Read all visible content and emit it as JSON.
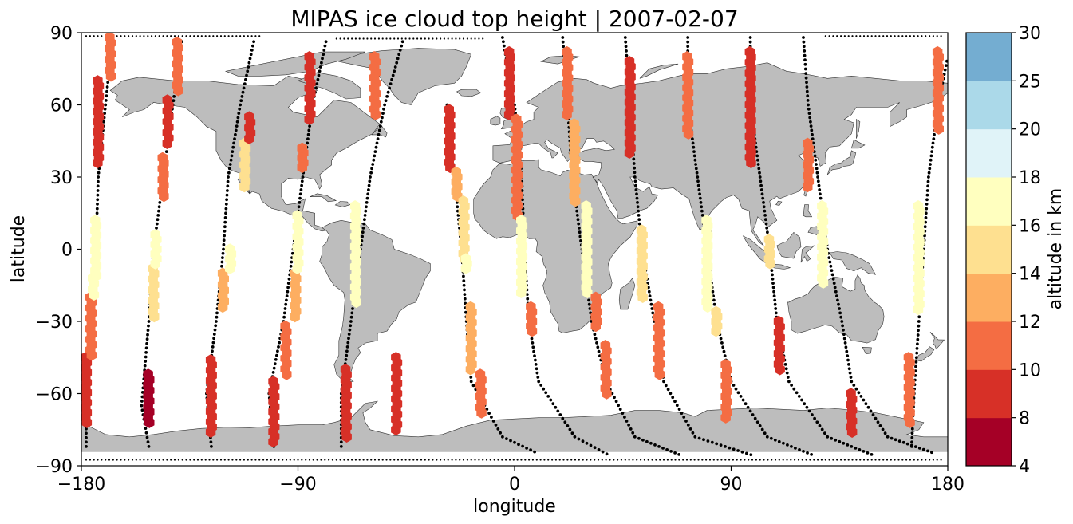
{
  "chart_data": {
    "type": "scatter",
    "title": "MIPAS ice cloud top height | 2007-02-07",
    "xlabel": "longitude",
    "ylabel": "latitude",
    "xlim": [
      -180,
      180
    ],
    "ylim": [
      -90,
      90
    ],
    "xticks": [
      -180,
      -90,
      0,
      90,
      180
    ],
    "yticks": [
      -90,
      -60,
      -30,
      0,
      30,
      60,
      90
    ],
    "xtick_labels": [
      "−180",
      "−90",
      "0",
      "90",
      "180"
    ],
    "ytick_labels": [
      "−90",
      "−60",
      "−30",
      "0",
      "30",
      "60",
      "90"
    ],
    "land_color": "#bdbdbd",
    "track_color": "#000000",
    "colorbar": {
      "label": "altitude in km",
      "bounds": [
        4,
        8,
        10,
        12,
        14,
        16,
        18,
        20,
        25,
        30
      ],
      "tick_labels": [
        "4",
        "8",
        "10",
        "12",
        "14",
        "16",
        "18",
        "20",
        "25",
        "30"
      ],
      "colors": [
        "#a50026",
        "#d73027",
        "#f46d43",
        "#fdae61",
        "#fee090",
        "#ffffbf",
        "#e0f3f8",
        "#abd9e9",
        "#74add1",
        "#313695"
      ]
    },
    "tracks": [
      {
        "direction": "ascending",
        "points": [
          [
            -178,
            -82
          ],
          [
            -178,
            -60
          ],
          [
            -175,
            -30
          ],
          [
            -174,
            0
          ],
          [
            -173,
            30
          ],
          [
            -170,
            60
          ],
          [
            -167,
            88
          ]
        ]
      },
      {
        "direction": "ascending",
        "points": [
          [
            -152,
            -82
          ],
          [
            -155,
            -65
          ],
          [
            -152,
            -30
          ],
          [
            -150,
            0
          ],
          [
            -146,
            30
          ],
          [
            -142,
            60
          ],
          [
            -138,
            88
          ]
        ]
      },
      {
        "direction": "ascending",
        "points": [
          [
            -126,
            -82
          ],
          [
            -128,
            -60
          ],
          [
            -124,
            -30
          ],
          [
            -121,
            0
          ],
          [
            -119,
            30
          ],
          [
            -114,
            60
          ],
          [
            -108,
            88
          ]
        ]
      },
      {
        "direction": "ascending",
        "points": [
          [
            -100,
            -82
          ],
          [
            -102,
            -60
          ],
          [
            -96,
            -30
          ],
          [
            -92,
            0
          ],
          [
            -88,
            30
          ],
          [
            -84,
            60
          ],
          [
            -78,
            88
          ]
        ]
      },
      {
        "direction": "ascending",
        "points": [
          [
            -72,
            -82
          ],
          [
            -72,
            -60
          ],
          [
            -68,
            -30
          ],
          [
            -64,
            0
          ],
          [
            -60,
            30
          ],
          [
            -54,
            60
          ],
          [
            -46,
            88
          ]
        ]
      },
      {
        "direction": "descending",
        "points": [
          [
            -28,
            60
          ],
          [
            -25,
            30
          ],
          [
            -22,
            0
          ],
          [
            -20,
            -30
          ],
          [
            -18,
            -55
          ],
          [
            -5,
            -78
          ],
          [
            10,
            -85
          ]
        ]
      },
      {
        "direction": "descending",
        "points": [
          [
            -5,
            88
          ],
          [
            0,
            60
          ],
          [
            3,
            30
          ],
          [
            4,
            0
          ],
          [
            6,
            -30
          ],
          [
            10,
            -55
          ],
          [
            25,
            -78
          ],
          [
            40,
            -86
          ]
        ]
      },
      {
        "direction": "descending",
        "points": [
          [
            20,
            88
          ],
          [
            22,
            60
          ],
          [
            24,
            30
          ],
          [
            28,
            0
          ],
          [
            32,
            -30
          ],
          [
            38,
            -55
          ],
          [
            50,
            -78
          ],
          [
            70,
            -86
          ]
        ]
      },
      {
        "direction": "descending",
        "points": [
          [
            46,
            88
          ],
          [
            48,
            60
          ],
          [
            50,
            30
          ],
          [
            53,
            0
          ],
          [
            58,
            -30
          ],
          [
            62,
            -55
          ],
          [
            75,
            -78
          ],
          [
            100,
            -86
          ]
        ]
      },
      {
        "direction": "descending",
        "points": [
          [
            72,
            88
          ],
          [
            72,
            60
          ],
          [
            76,
            30
          ],
          [
            80,
            0
          ],
          [
            84,
            -30
          ],
          [
            90,
            -55
          ],
          [
            105,
            -78
          ],
          [
            125,
            -86
          ]
        ]
      },
      {
        "direction": "descending",
        "points": [
          [
            98,
            88
          ],
          [
            98,
            60
          ],
          [
            102,
            30
          ],
          [
            106,
            0
          ],
          [
            109,
            -30
          ],
          [
            114,
            -55
          ],
          [
            130,
            -78
          ],
          [
            150,
            -86
          ]
        ]
      },
      {
        "direction": "descending",
        "points": [
          [
            120,
            88
          ],
          [
            122,
            60
          ],
          [
            126,
            30
          ],
          [
            130,
            0
          ],
          [
            136,
            -30
          ],
          [
            140,
            -55
          ],
          [
            155,
            -78
          ],
          [
            175,
            -85
          ]
        ]
      },
      {
        "direction": "ascending",
        "points": [
          [
            165,
            -82
          ],
          [
            166,
            -60
          ],
          [
            168,
            -30
          ],
          [
            170,
            0
          ],
          [
            172,
            30
          ],
          [
            176,
            60
          ],
          [
            180,
            80
          ]
        ]
      }
    ],
    "cloud_points": [
      {
        "lon": -178,
        "lat_start": -72,
        "lat_end": -45,
        "alt": 9
      },
      {
        "lon": -176,
        "lat_start": -44,
        "lat_end": -20,
        "alt": 11
      },
      {
        "lon": -175,
        "lat_start": -19,
        "lat_end": -12,
        "alt": 17
      },
      {
        "lon": -174,
        "lat_start": -11,
        "lat_end": 12,
        "alt": 16.5
      },
      {
        "lon": -173,
        "lat_start": 36,
        "lat_end": 70,
        "alt": 9
      },
      {
        "lon": -168,
        "lat_start": 72,
        "lat_end": 88,
        "alt": 11
      },
      {
        "lon": -152,
        "lat_start": -72,
        "lat_end": -52,
        "alt": 7
      },
      {
        "lon": -150,
        "lat_start": -28,
        "lat_end": -8,
        "alt": 15
      },
      {
        "lon": -149,
        "lat_start": -6,
        "lat_end": 6,
        "alt": 16.5
      },
      {
        "lon": -146,
        "lat_start": 22,
        "lat_end": 38,
        "alt": 11
      },
      {
        "lon": -144,
        "lat_start": 44,
        "lat_end": 62,
        "alt": 9
      },
      {
        "lon": -140,
        "lat_start": 66,
        "lat_end": 86,
        "alt": 11
      },
      {
        "lon": -126,
        "lat_start": -76,
        "lat_end": -46,
        "alt": 9
      },
      {
        "lon": -121,
        "lat_start": -24,
        "lat_end": -10,
        "alt": 13
      },
      {
        "lon": -118,
        "lat_start": -8,
        "lat_end": 0,
        "alt": 16.5
      },
      {
        "lon": -112,
        "lat_start": 26,
        "lat_end": 44,
        "alt": 14.5
      },
      {
        "lon": -110,
        "lat_start": 46,
        "lat_end": 55,
        "alt": 9
      },
      {
        "lon": -100,
        "lat_start": -80,
        "lat_end": -55,
        "alt": 9
      },
      {
        "lon": -95,
        "lat_start": -52,
        "lat_end": -32,
        "alt": 11
      },
      {
        "lon": -91,
        "lat_start": -28,
        "lat_end": -10,
        "alt": 13
      },
      {
        "lon": -90,
        "lat_start": -8,
        "lat_end": 14,
        "alt": 16.5
      },
      {
        "lon": -88,
        "lat_start": 34,
        "lat_end": 42,
        "alt": 11
      },
      {
        "lon": -85,
        "lat_start": 54,
        "lat_end": 80,
        "alt": 9
      },
      {
        "lon": -70,
        "lat_start": -78,
        "lat_end": -50,
        "alt": 9
      },
      {
        "lon": -66,
        "lat_start": -22,
        "lat_end": 18,
        "alt": 16.5
      },
      {
        "lon": -58,
        "lat_start": 56,
        "lat_end": 80,
        "alt": 11
      },
      {
        "lon": -49,
        "lat_start": -75,
        "lat_end": -45,
        "alt": 9
      },
      {
        "lon": -27,
        "lat_start": 34,
        "lat_end": 58,
        "alt": 9
      },
      {
        "lon": -24,
        "lat_start": 22,
        "lat_end": 32,
        "alt": 13
      },
      {
        "lon": -21,
        "lat_start": -4,
        "lat_end": 20,
        "alt": 14
      },
      {
        "lon": -20,
        "lat_start": -8,
        "lat_end": -4,
        "alt": 17
      },
      {
        "lon": -18,
        "lat_start": -50,
        "lat_end": -24,
        "alt": 13
      },
      {
        "lon": -14,
        "lat_start": -68,
        "lat_end": -52,
        "alt": 10
      },
      {
        "lon": -2,
        "lat_start": 56,
        "lat_end": 82,
        "alt": 9
      },
      {
        "lon": 1,
        "lat_start": 14,
        "lat_end": 54,
        "alt": 11
      },
      {
        "lon": 3,
        "lat_start": -18,
        "lat_end": 12,
        "alt": 16.5
      },
      {
        "lon": 7,
        "lat_start": -34,
        "lat_end": -24,
        "alt": 11
      },
      {
        "lon": 22,
        "lat_start": 56,
        "lat_end": 82,
        "alt": 11
      },
      {
        "lon": 25,
        "lat_start": 20,
        "lat_end": 52,
        "alt": 13
      },
      {
        "lon": 30,
        "lat_start": -18,
        "lat_end": 18,
        "alt": 17.5
      },
      {
        "lon": 34,
        "lat_start": -32,
        "lat_end": -20,
        "alt": 11
      },
      {
        "lon": 38,
        "lat_start": -60,
        "lat_end": -40,
        "alt": 10
      },
      {
        "lon": 48,
        "lat_start": 40,
        "lat_end": 78,
        "alt": 9
      },
      {
        "lon": 53,
        "lat_start": -20,
        "lat_end": 8,
        "alt": 14.5
      },
      {
        "lon": 60,
        "lat_start": -52,
        "lat_end": -24,
        "alt": 11
      },
      {
        "lon": 72,
        "lat_start": 48,
        "lat_end": 80,
        "alt": 11
      },
      {
        "lon": 80,
        "lat_start": -24,
        "lat_end": 12,
        "alt": 16.5
      },
      {
        "lon": 84,
        "lat_start": -34,
        "lat_end": -26,
        "alt": 14
      },
      {
        "lon": 88,
        "lat_start": -70,
        "lat_end": -48,
        "alt": 10
      },
      {
        "lon": 98,
        "lat_start": 36,
        "lat_end": 82,
        "alt": 9
      },
      {
        "lon": 106,
        "lat_start": -6,
        "lat_end": 4,
        "alt": 14
      },
      {
        "lon": 110,
        "lat_start": -50,
        "lat_end": -30,
        "alt": 9
      },
      {
        "lon": 122,
        "lat_start": 26,
        "lat_end": 44,
        "alt": 11
      },
      {
        "lon": 128,
        "lat_start": -14,
        "lat_end": 18,
        "alt": 16.5
      },
      {
        "lon": 140,
        "lat_start": -76,
        "lat_end": -60,
        "alt": 9
      },
      {
        "lon": 164,
        "lat_start": -72,
        "lat_end": -45,
        "alt": 11
      },
      {
        "lon": 168,
        "lat_start": -25,
        "lat_end": 18,
        "alt": 16.5
      },
      {
        "lon": 176,
        "lat_start": 50,
        "lat_end": 82,
        "alt": 10
      }
    ]
  }
}
